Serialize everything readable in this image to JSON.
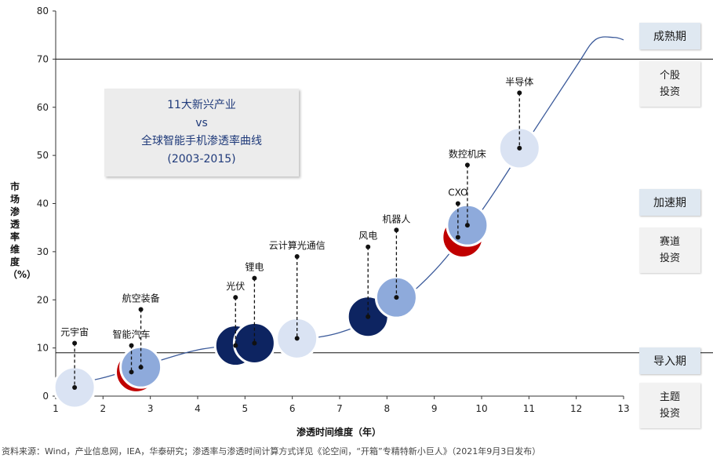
{
  "chart_data": {
    "type": "scatter",
    "title_lines": [
      "11大新兴产业",
      "vs",
      "全球智能手机渗透率曲线",
      "(2003-2015)"
    ],
    "xlabel": "渗透时间维度（年）",
    "ylabel": "市场渗透率维度（%）",
    "xlim": [
      1,
      13
    ],
    "ylim": [
      0,
      80
    ],
    "xticks": [
      1,
      2,
      3,
      4,
      5,
      6,
      7,
      8,
      9,
      10,
      11,
      12,
      13
    ],
    "yticks": [
      0,
      10,
      20,
      30,
      40,
      50,
      60,
      70,
      80
    ],
    "grid": false,
    "reference_lines": [
      9,
      70
    ],
    "curve": [
      {
        "x": 1.0,
        "y": 1.8
      },
      {
        "x": 2.0,
        "y": 3.8
      },
      {
        "x": 3.0,
        "y": 6.8
      },
      {
        "x": 4.0,
        "y": 9.6
      },
      {
        "x": 5.0,
        "y": 10.8
      },
      {
        "x": 6.0,
        "y": 11.6
      },
      {
        "x": 7.0,
        "y": 13.2
      },
      {
        "x": 8.0,
        "y": 17.6
      },
      {
        "x": 9.0,
        "y": 26.0
      },
      {
        "x": 10.0,
        "y": 38.5
      },
      {
        "x": 11.0,
        "y": 53.5
      },
      {
        "x": 12.0,
        "y": 68.5
      },
      {
        "x": 12.4,
        "y": 74.0
      },
      {
        "x": 12.8,
        "y": 74.5
      },
      {
        "x": 13.0,
        "y": 74.0
      }
    ],
    "points": [
      {
        "label": "元宇宙",
        "x": 1.4,
        "curve_y": 1.8,
        "label_y": 11,
        "color": "#dae3f3"
      },
      {
        "label": "智能汽车",
        "x": 2.6,
        "curve_y": 5.0,
        "label_y": 10.5,
        "color": "#c00000"
      },
      {
        "label": "航空装备",
        "x": 2.8,
        "curve_y": 6.0,
        "label_y": 18,
        "color": "#8eaadb"
      },
      {
        "label": "光伏",
        "x": 4.8,
        "curve_y": 10.5,
        "label_y": 20.5,
        "color": "#0d2461"
      },
      {
        "label": "锂电",
        "x": 5.2,
        "curve_y": 11.0,
        "label_y": 24.5,
        "color": "#0d2461"
      },
      {
        "label": "云计算光通信",
        "x": 6.1,
        "curve_y": 12.0,
        "label_y": 29,
        "color": "#dae3f3"
      },
      {
        "label": "风电",
        "x": 7.6,
        "curve_y": 16.5,
        "label_y": 31,
        "color": "#0d2461"
      },
      {
        "label": "机器人",
        "x": 8.2,
        "curve_y": 20.5,
        "label_y": 34.5,
        "color": "#8eaadb"
      },
      {
        "label": "CXO",
        "x": 9.5,
        "curve_y": 33.0,
        "label_y": 40,
        "color": "#c00000"
      },
      {
        "label": "数控机床",
        "x": 9.7,
        "curve_y": 35.5,
        "label_y": 48,
        "color": "#8eaadb"
      },
      {
        "label": "半导体",
        "x": 10.8,
        "curve_y": 51.5,
        "label_y": 63,
        "color": "#dae3f3"
      }
    ]
  },
  "stages": [
    {
      "name": "成熟期",
      "desc": [
        "个股",
        "投资"
      ]
    },
    {
      "name": "加速期",
      "desc": [
        "赛道",
        "投资"
      ]
    },
    {
      "name": "导入期",
      "desc": [
        "主题",
        "投资"
      ]
    }
  ],
  "source": "资料来源：Wind，产业信息网，IEA，华泰研究；渗透率与渗透时间计算方式详见《论空间，“开箱”专精特新小巨人》（2021年9月3日发布）"
}
